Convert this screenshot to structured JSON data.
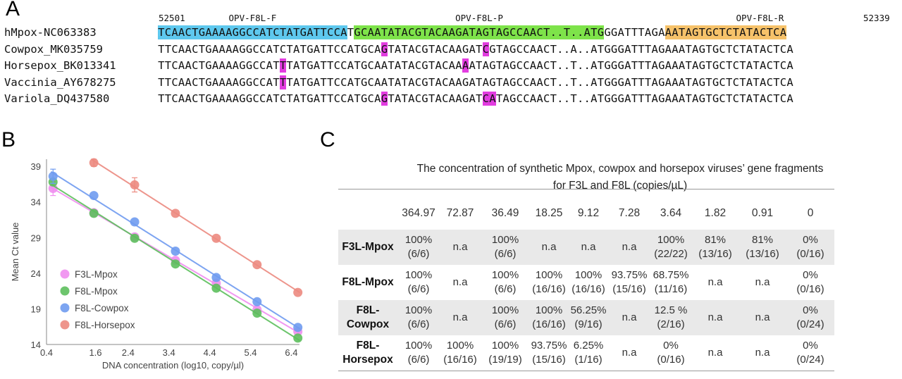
{
  "panels": {
    "a": "A",
    "b": "B",
    "c": "C"
  },
  "alignment": {
    "start_pos": "52501",
    "end_pos": "52339",
    "regions": [
      {
        "label": "OPV-F8L-F",
        "start": 0,
        "end": 27,
        "color": "#5ec8ee"
      },
      {
        "label": "OPV-F8L-P",
        "start": 29,
        "end": 65,
        "color": "#7ee34a"
      },
      {
        "label": "OPV-F8L-R",
        "start": 75,
        "end": 102,
        "color": "#f6c26a"
      }
    ],
    "sequences": [
      {
        "name": "hMpox-NC063383",
        "seq": "TCAACTGAAAAGGCCATCTATGATTCCATGCAATATACGTACAAGATAGTAGCCAACT..T..ATGGGATTTAGAAATAGTGCTCTATACTCA",
        "highlights": []
      },
      {
        "name": "Cowpox_MK035759",
        "seq": "TTCAACTGAAAAGGCCATCTATGATTCCATGCAGTATACGTACAAGATCGTAGCCAACT..A..ATGGGATTTAGAAATAGTGCTCTATACTCA",
        "highlights": [
          33,
          48
        ]
      },
      {
        "name": "Horsepox_BK013341",
        "seq": "TTCAACTGAAAAGGCCATTTATGATTCCATGCAATATACGTACAAAATAGTAGCCAACT..T..ATGGGATTTAGAAATAGTGCTCTATACTCA",
        "highlights": [
          18,
          45
        ]
      },
      {
        "name": "Vaccinia_AY678275",
        "seq": "TTCAACTGAAAAGGCCATTTATGATTCCATGCAATATACGTACAAGATAGTAGCCAACT..T..ATGGGATTTAGAAATAGTGCTCTATACTCA",
        "highlights": [
          18
        ]
      },
      {
        "name": "Variola_DQ437580",
        "seq": "TTCAACTGAAAAGGCCATCTATGATTCCATGCAGTATACGTACAAGATCATAGCCAACT..T..ATGGGATTTAGAAATAGTGCTCTATACTCA",
        "highlights": [
          33,
          48,
          49
        ]
      }
    ]
  },
  "chart_data": {
    "type": "scatter",
    "xlabel": "DNA concentration (log10, copy/µl)",
    "ylabel": "Mean Ct value",
    "xlim": [
      0.4,
      6.6
    ],
    "ylim": [
      14,
      40
    ],
    "x_ticks": [
      "0.4",
      "1.6",
      "2.4",
      "3.4",
      "4.4",
      "5.4",
      "6.4"
    ],
    "x_tick_values": [
      0.4,
      1.6,
      2.4,
      3.4,
      4.4,
      5.4,
      6.4
    ],
    "y_ticks": [
      "14",
      "19",
      "24",
      "29",
      "34",
      "39"
    ],
    "y_tick_values": [
      14,
      19,
      24,
      29,
      34,
      39
    ],
    "legend_position": "bottom-left",
    "series": [
      {
        "name": "F3L-Mpox",
        "color": "#f08ef0",
        "x": [
          0.56,
          1.56,
          2.56,
          3.56,
          4.56,
          5.56,
          6.56
        ],
        "y": [
          35.9,
          32.5,
          29.1,
          25.8,
          22.6,
          18.9,
          15.8
        ],
        "err": [
          1.0,
          0,
          0,
          0,
          0,
          0,
          0
        ]
      },
      {
        "name": "F8L-Mpox",
        "color": "#5dbf5d",
        "x": [
          0.56,
          1.56,
          2.56,
          3.56,
          4.56,
          5.56,
          6.56
        ],
        "y": [
          36.8,
          32.4,
          28.9,
          25.3,
          21.9,
          18.4,
          14.9
        ],
        "err": [
          0,
          0,
          0,
          0,
          0,
          0,
          0
        ]
      },
      {
        "name": "F8L-Cowpox",
        "color": "#6f9bf0",
        "x": [
          0.56,
          1.56,
          2.56,
          3.56,
          4.56,
          5.56,
          6.56
        ],
        "y": [
          37.6,
          34.9,
          31.2,
          27.1,
          23.4,
          20.0,
          16.4
        ],
        "err": [
          1.0,
          0,
          0,
          0,
          0,
          0,
          0
        ]
      },
      {
        "name": "F8L-Horsepox",
        "color": "#ec8a80",
        "x": [
          1.56,
          2.56,
          3.56,
          4.56,
          5.56,
          6.56
        ],
        "y": [
          39.5,
          36.4,
          32.4,
          28.9,
          25.2,
          21.3
        ],
        "err": [
          0.5,
          1.0,
          0,
          0,
          0,
          0
        ]
      }
    ]
  },
  "table": {
    "title_line1": "The concentration of synthetic Mpox, cowpox and horsepox viruses’ gene fragments",
    "title_line2": "for F3L and F8L (copies/µL)",
    "concentrations": [
      "364.97",
      "72.87",
      "36.49",
      "18.25",
      "9.12",
      "7.28",
      "3.64",
      "1.82",
      "0.91",
      "0"
    ],
    "rows": [
      {
        "label1": "F3L-Mpox",
        "label2": "",
        "cells": [
          [
            "100%",
            "(6/6)"
          ],
          [
            "n.a",
            ""
          ],
          [
            "100%",
            "(6/6)"
          ],
          [
            "n.a",
            ""
          ],
          [
            "n.a",
            ""
          ],
          [
            "n.a",
            ""
          ],
          [
            "100%",
            "(22/22)"
          ],
          [
            "81%",
            "(13/16)"
          ],
          [
            "81%",
            "(13/16)"
          ],
          [
            "0%",
            "(0/16)"
          ]
        ]
      },
      {
        "label1": "F8L-Mpox",
        "label2": "",
        "cells": [
          [
            "100%",
            "(6/6)"
          ],
          [
            "n.a",
            ""
          ],
          [
            "100%",
            "(6/6)"
          ],
          [
            "100%",
            "(16/16)"
          ],
          [
            "100%",
            "(16/16)"
          ],
          [
            "93.75%",
            "(15/16)"
          ],
          [
            "68.75%",
            "(11/16)"
          ],
          [
            "n.a",
            ""
          ],
          [
            "n.a",
            ""
          ],
          [
            "0%",
            "(0/16)"
          ]
        ]
      },
      {
        "label1": "F8L-",
        "label2": "Cowpox",
        "cells": [
          [
            "100%",
            "(6/6)"
          ],
          [
            "n.a",
            ""
          ],
          [
            "100%",
            "(6/6)"
          ],
          [
            "100%",
            "(16/16)"
          ],
          [
            "56.25%",
            "(9/16)"
          ],
          [
            "n.a",
            ""
          ],
          [
            "12.5 %",
            "(2/16)"
          ],
          [
            "n.a",
            ""
          ],
          [
            "n.a",
            ""
          ],
          [
            "0%",
            "(0/24)"
          ]
        ]
      },
      {
        "label1": "F8L-",
        "label2": "Horsepox",
        "cells": [
          [
            "100%",
            "(6/6)"
          ],
          [
            "100%",
            "(16/16)"
          ],
          [
            "100%",
            "(19/19)"
          ],
          [
            "93.75%",
            "(15/16)"
          ],
          [
            "6.25%",
            "(1/16)"
          ],
          [
            "n.a",
            ""
          ],
          [
            "0%",
            "(0/16)"
          ],
          [
            "n.a",
            ""
          ],
          [
            "n.a",
            ""
          ],
          [
            "0%",
            "(0/24)"
          ]
        ]
      }
    ]
  }
}
